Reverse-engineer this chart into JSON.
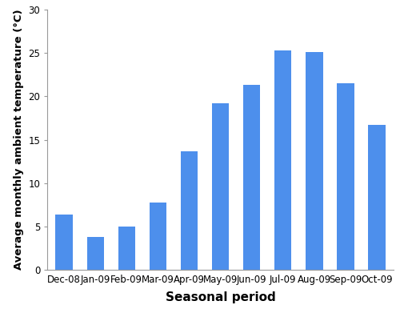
{
  "categories": [
    "Dec-08",
    "Jan-09",
    "Feb-09",
    "Mar-09",
    "Apr-09",
    "May-09",
    "Jun-09",
    "Jul-09",
    "Aug-09",
    "Sep-09",
    "Oct-09"
  ],
  "values": [
    6.4,
    3.8,
    5.0,
    7.8,
    13.7,
    19.2,
    21.3,
    25.3,
    25.1,
    21.5,
    16.7
  ],
  "bar_color": "#4d8fec",
  "xlabel": "Seasonal period",
  "ylabel": "Average monthly ambient temperature (°C)",
  "ylim": [
    0,
    30
  ],
  "yticks": [
    0,
    5,
    10,
    15,
    20,
    25,
    30
  ],
  "xlabel_fontsize": 11,
  "ylabel_fontsize": 9.5,
  "tick_fontsize": 8.5,
  "background_color": "#ffffff",
  "bar_width": 0.55
}
